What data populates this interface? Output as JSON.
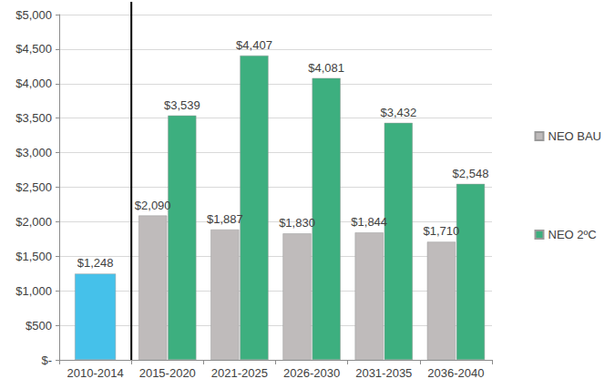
{
  "chart_data": {
    "type": "bar",
    "categories": [
      "2010-2014",
      "2015-2020",
      "2021-2025",
      "2026-2030",
      "2031-2035",
      "2036-2040"
    ],
    "series": [
      {
        "color": "#45c1ea",
        "values": [
          1248,
          null,
          null,
          null,
          null,
          null
        ],
        "value_labels": [
          "$1,248",
          null,
          null,
          null,
          null,
          null
        ]
      },
      {
        "name": "NEO BAU",
        "color": "#bfbbbb",
        "values": [
          null,
          2090,
          1887,
          1830,
          1844,
          1710
        ],
        "value_labels": [
          null,
          "$2,090",
          "$1,887",
          "$1,830",
          "$1,844",
          "$1,710"
        ]
      },
      {
        "name": "NEO 2ºC",
        "color": "#3daf7f",
        "values": [
          null,
          3539,
          4407,
          4081,
          3432,
          2548
        ],
        "value_labels": [
          null,
          "$3,539",
          "$4,407",
          "$4,081",
          "$3,432",
          "$2,548"
        ]
      }
    ],
    "ylim": [
      0,
      5000
    ],
    "yticks": [
      {
        "value": 0,
        "label": "$-"
      },
      {
        "value": 500,
        "label": "$500"
      },
      {
        "value": 1000,
        "label": "$1,000"
      },
      {
        "value": 1500,
        "label": "$1,500"
      },
      {
        "value": 2000,
        "label": "$2,000"
      },
      {
        "value": 2500,
        "label": "$2,500"
      },
      {
        "value": 3000,
        "label": "$3,000"
      },
      {
        "value": 3500,
        "label": "$3,500"
      },
      {
        "value": 4000,
        "label": "$4,000"
      },
      {
        "value": 4500,
        "label": "$4,500"
      },
      {
        "value": 5000,
        "label": "$5,000"
      }
    ],
    "grid": true,
    "data_labels": true,
    "legend": "right"
  }
}
